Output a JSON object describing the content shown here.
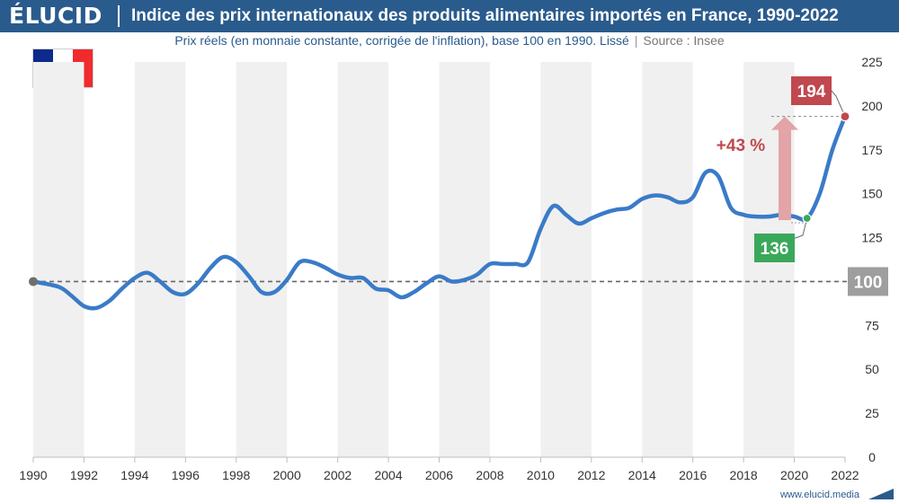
{
  "header": {
    "logo": "ÉLUCID",
    "title": "Indice des prix internationaux des produits alimentaires importés en France, 1990-2022"
  },
  "subtitle": {
    "text": "Prix réels (en monnaie constante, corrigée de l'inflation), base 100 en 1990. Lissé",
    "separator": "|",
    "source": "Source : Insee"
  },
  "flag": {
    "country": "France",
    "colors": [
      "#0d2a8c",
      "#ffffff",
      "#ef2b2d"
    ]
  },
  "website": "www.elucid.media",
  "colors": {
    "line": "#3a7bc8",
    "grid_band": "#f0f0f0",
    "reference": "#666666",
    "start_point": "#6e6e6e",
    "low": "#3aa85a",
    "high": "#c0484e",
    "arrow": "#e2a4a6",
    "change_text": "#c0484e",
    "header_bg": "#2a5b8d"
  },
  "chart_data": {
    "type": "line",
    "title": "",
    "xlabel": "",
    "ylabel": "",
    "xlim": [
      1990,
      2022
    ],
    "ylim": [
      0,
      225
    ],
    "x_ticks": [
      "1990",
      "1992",
      "1994",
      "1996",
      "1998",
      "2000",
      "2002",
      "2004",
      "2006",
      "2008",
      "2010",
      "2012",
      "2014",
      "2016",
      "2018",
      "2020",
      "2022"
    ],
    "y_ticks": [
      "0",
      "25",
      "50",
      "75",
      "100",
      "125",
      "150",
      "175",
      "200",
      "225"
    ],
    "grid": "alternating vertical bands",
    "series": [
      {
        "x": [
          1990,
          1991,
          1991.5,
          1992,
          1992.5,
          1993,
          1993.5,
          1994,
          1994.5,
          1995,
          1995.5,
          1996,
          1996.5,
          1997,
          1997.5,
          1998,
          1998.5,
          1999,
          1999.5,
          2000,
          2000.5,
          2001,
          2001.5,
          2002,
          2002.5,
          2003,
          2003.5,
          2004,
          2004.5,
          2005,
          2005.5,
          2006,
          2006.5,
          2007,
          2007.5,
          2008,
          2008.5,
          2009,
          2009.5,
          2010,
          2010.5,
          2011,
          2011.5,
          2012,
          2012.5,
          2013,
          2013.5,
          2014,
          2014.5,
          2015,
          2015.5,
          2016,
          2016.5,
          2017,
          2017.5,
          2018,
          2018.5,
          2019,
          2019.5,
          2020,
          2020.5,
          2021,
          2021.5,
          2022
        ],
        "values": [
          100,
          97,
          92,
          86,
          85,
          89,
          96,
          102,
          105,
          100,
          94,
          93,
          99,
          108,
          114,
          111,
          103,
          94,
          94,
          101,
          111,
          111,
          108,
          104,
          102,
          102,
          96,
          95,
          91,
          94,
          99,
          103,
          100,
          101,
          104,
          110,
          110,
          110,
          111,
          130,
          143,
          138,
          133,
          136,
          139,
          141,
          142,
          147,
          149,
          148,
          145,
          148,
          162,
          160,
          142,
          138,
          137,
          137,
          138,
          137,
          136,
          150,
          175,
          194
        ]
      }
    ],
    "reference_line": {
      "value": 100,
      "label": "100"
    },
    "annotations": {
      "low": {
        "year": 2020.5,
        "value": 136,
        "label": "136"
      },
      "high": {
        "year": 2022,
        "value": 194,
        "label": "194"
      },
      "change": {
        "label": "+43 %"
      }
    }
  }
}
